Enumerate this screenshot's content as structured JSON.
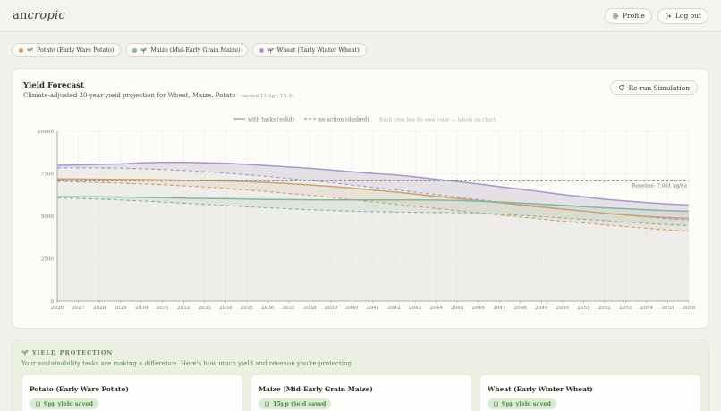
{
  "app": {
    "logo_plain": "an",
    "logo_italic": "cropic"
  },
  "header": {
    "profile_label": "Profile",
    "logout_label": "Log out"
  },
  "crops": [
    {
      "label": "Potato (Early Ware Potato)",
      "color": "#c9a36f"
    },
    {
      "label": "Maize (Mid-Early Grain Maize)",
      "color": "#86b59a"
    },
    {
      "label": "Wheat (Early Winter Wheat)",
      "color": "#a896cc"
    }
  ],
  "forecast": {
    "title": "Yield Forecast",
    "subtitle": "Climate-adjusted 30-year yield projection for Wheat, Maize, Potato",
    "cached": "· cached 11 Apr, 10:34",
    "rerun_label": "Re-run Simulation"
  },
  "chart_data": {
    "type": "line",
    "legend": {
      "solid": "with tasks (solid)",
      "dashed": "no action (dashed)",
      "note": "Each crop has its own color — labels on chart"
    },
    "x": [
      2026,
      2027,
      2028,
      2029,
      2030,
      2031,
      2032,
      2033,
      2034,
      2035,
      2036,
      2037,
      2038,
      2039,
      2040,
      2041,
      2042,
      2043,
      2044,
      2045,
      2046,
      2047,
      2048,
      2049,
      2050,
      2051,
      2052,
      2053,
      2054,
      2055,
      2056
    ],
    "ylim": [
      0,
      10000
    ],
    "yticks": [
      0,
      2500,
      5000,
      7500,
      10000
    ],
    "baseline": {
      "value": 7081,
      "label": "Baseline: 7,081 kg/ha"
    },
    "grid": true,
    "series": [
      {
        "crop": "Wheat",
        "style": "solid",
        "color": "#a896cc",
        "values": [
          8000,
          8020,
          8050,
          8080,
          8150,
          8170,
          8180,
          8150,
          8120,
          8050,
          7980,
          7900,
          7820,
          7720,
          7620,
          7520,
          7440,
          7320,
          7180,
          7050,
          6900,
          6740,
          6600,
          6440,
          6280,
          6140,
          6000,
          5900,
          5800,
          5720,
          5660
        ]
      },
      {
        "crop": "Wheat",
        "style": "dashed",
        "color": "#a896cc",
        "values": [
          7850,
          7850,
          7840,
          7830,
          7800,
          7760,
          7700,
          7620,
          7540,
          7440,
          7340,
          7220,
          7100,
          6980,
          6840,
          6700,
          6560,
          6420,
          6280,
          6120,
          5980,
          5840,
          5700,
          5560,
          5420,
          5300,
          5180,
          5060,
          4960,
          4860,
          4780
        ]
      },
      {
        "crop": "Potato",
        "style": "solid",
        "color": "#c9a36f",
        "values": [
          7200,
          7190,
          7180,
          7170,
          7160,
          7140,
          7120,
          7100,
          7080,
          7040,
          6990,
          6920,
          6840,
          6760,
          6660,
          6550,
          6430,
          6300,
          6180,
          6050,
          5920,
          5800,
          5660,
          5540,
          5420,
          5300,
          5180,
          5080,
          4990,
          4920,
          4880
        ]
      },
      {
        "crop": "Potato",
        "style": "dashed",
        "color": "#c9a36f",
        "values": [
          7050,
          7020,
          6990,
          6950,
          6900,
          6850,
          6790,
          6720,
          6640,
          6550,
          6450,
          6340,
          6230,
          6110,
          5980,
          5850,
          5720,
          5590,
          5460,
          5330,
          5200,
          5070,
          4950,
          4830,
          4710,
          4600,
          4490,
          4390,
          4290,
          4200,
          4120
        ]
      },
      {
        "crop": "Maize",
        "style": "solid",
        "color": "#86b59a",
        "values": [
          6150,
          6150,
          6140,
          6130,
          6110,
          6090,
          6070,
          6050,
          6030,
          6010,
          5990,
          5980,
          5970,
          5960,
          5960,
          5960,
          5960,
          5960,
          5950,
          5930,
          5890,
          5840,
          5780,
          5710,
          5640,
          5570,
          5500,
          5440,
          5380,
          5330,
          5290
        ]
      },
      {
        "crop": "Maize",
        "style": "dashed",
        "color": "#86b59a",
        "values": [
          6080,
          6050,
          6010,
          5960,
          5900,
          5840,
          5770,
          5700,
          5630,
          5560,
          5500,
          5440,
          5380,
          5340,
          5300,
          5270,
          5250,
          5230,
          5220,
          5210,
          5180,
          5130,
          5060,
          4980,
          4900,
          4820,
          4740,
          4660,
          4580,
          4510,
          4440
        ]
      }
    ]
  },
  "protection": {
    "title": "YIELD PROTECTION",
    "subtitle": "Your sustainability tasks are making a difference. Here's how much yield and revenue you're protecting.",
    "cards": [
      {
        "title": "Potato (Early Ware Potato)",
        "saved": "9pp yield saved"
      },
      {
        "title": "Maize (Mid-Early Grain Maize)",
        "saved": "15pp yield saved"
      },
      {
        "title": "Wheat (Early Winter Wheat)",
        "saved": "9pp yield saved"
      }
    ]
  }
}
